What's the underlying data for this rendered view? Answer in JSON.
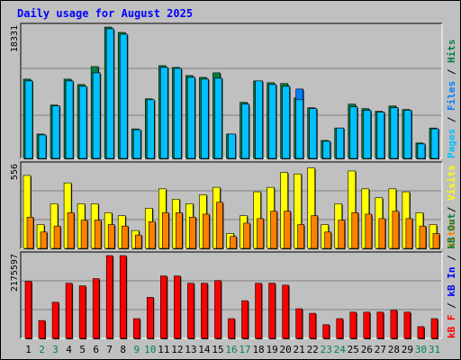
{
  "title": "Daily usage for August 2025",
  "colors": {
    "hits": "#008040",
    "files": "#0080ff",
    "pages": "#00c0ff",
    "visits": "#ffff00",
    "sites": "#ff8000",
    "kbin": "#0000ff",
    "kbout": "#008040",
    "kbf": "#ff0000",
    "weekend_day": "#00805c",
    "weekday": "#000000",
    "panel_bg": "#c0c0c0",
    "gridline": "#808080"
  },
  "chart_data": [
    {
      "type": "bar",
      "panel": "hits-files-pages",
      "title": "Daily usage for August 2025",
      "y_max_label": "18331",
      "ylim": [
        0,
        18331
      ],
      "legend_right": [
        {
          "key": "pages",
          "text": "Pages"
        },
        {
          "key": "sep",
          "text": " / "
        },
        {
          "key": "files",
          "text": "Files"
        },
        {
          "key": "sep",
          "text": " / "
        },
        {
          "key": "hits",
          "text": "Hits"
        }
      ],
      "categories": [
        "1",
        "2",
        "3",
        "4",
        "5",
        "6",
        "7",
        "8",
        "9",
        "10",
        "11",
        "12",
        "13",
        "14",
        "15",
        "16",
        "17",
        "18",
        "19",
        "20",
        "21",
        "22",
        "23",
        "24",
        "25",
        "26",
        "27",
        "28",
        "29",
        "30",
        "31"
      ],
      "series": [
        {
          "name": "Hits",
          "values": [
            11060,
            3400,
            7440,
            11060,
            10310,
            12810,
            18330,
            17580,
            4120,
            8310,
            12940,
            12690,
            11560,
            11310,
            11940,
            3400,
            7820,
            10810,
            10560,
            10440,
            8430,
            7070,
            2510,
            4240,
            7570,
            6950,
            6570,
            7320,
            6820,
            2150,
            4240
          ]
        },
        {
          "name": "Files",
          "values": [
            10810,
            3270,
            7320,
            10810,
            10060,
            11940,
            18080,
            17330,
            3990,
            8190,
            12690,
            12560,
            11310,
            11060,
            11190,
            3400,
            7570,
            10810,
            10310,
            10060,
            9680,
            6950,
            2390,
            4240,
            7190,
            6700,
            6450,
            7070,
            6700,
            2020,
            4120
          ]
        },
        {
          "name": "Pages",
          "values": [
            10810,
            3270,
            7320,
            10810,
            10060,
            11940,
            18080,
            17330,
            3990,
            8190,
            12690,
            12560,
            11310,
            11060,
            11190,
            3400,
            7570,
            10810,
            10310,
            10060,
            8190,
            6950,
            2390,
            4240,
            7190,
            6700,
            6450,
            7070,
            6700,
            2020,
            4120
          ]
        }
      ]
    },
    {
      "type": "bar",
      "panel": "visits-sites",
      "y_max_label": "556",
      "ylim": [
        0,
        556
      ],
      "legend_right": [
        {
          "key": "sites",
          "text": "Sites"
        },
        {
          "key": "sep",
          "text": " / "
        },
        {
          "key": "visits",
          "text": "Visits"
        }
      ],
      "categories": [
        "1",
        "2",
        "3",
        "4",
        "5",
        "6",
        "7",
        "8",
        "9",
        "10",
        "11",
        "12",
        "13",
        "14",
        "15",
        "16",
        "17",
        "18",
        "19",
        "20",
        "21",
        "22",
        "23",
        "24",
        "25",
        "26",
        "27",
        "28",
        "29",
        "30",
        "31"
      ],
      "series": [
        {
          "name": "Visits",
          "values": [
            490,
            160,
            300,
            440,
            300,
            300,
            240,
            220,
            120,
            270,
            400,
            330,
            300,
            360,
            410,
            100,
            220,
            380,
            410,
            510,
            500,
            540,
            160,
            300,
            520,
            400,
            340,
            400,
            380,
            240,
            160
          ]
        },
        {
          "name": "Sites",
          "values": [
            210,
            110,
            150,
            240,
            190,
            190,
            160,
            150,
            90,
            180,
            240,
            240,
            210,
            230,
            310,
            80,
            170,
            200,
            250,
            250,
            160,
            220,
            110,
            190,
            240,
            230,
            200,
            250,
            200,
            150,
            100
          ]
        }
      ]
    },
    {
      "type": "bar",
      "panel": "kbf-kbin-kbout",
      "y_max_label": "2175597",
      "ylim": [
        0,
        2175597
      ],
      "legend_right": [
        {
          "key": "kbf",
          "text": "kB F"
        },
        {
          "key": "sep",
          "text": " / "
        },
        {
          "key": "kbin",
          "text": "kB In"
        },
        {
          "key": "sep",
          "text": " / "
        },
        {
          "key": "kbout",
          "text": "kB Out"
        }
      ],
      "categories": [
        "1",
        "2",
        "3",
        "4",
        "5",
        "6",
        "7",
        "8",
        "9",
        "10",
        "11",
        "12",
        "13",
        "14",
        "15",
        "16",
        "17",
        "18",
        "19",
        "20",
        "21",
        "22",
        "23",
        "24",
        "25",
        "26",
        "27",
        "28",
        "29",
        "30",
        "31"
      ],
      "series": [
        {
          "name": "kB F",
          "values": [
            1500000,
            470000,
            950000,
            1450000,
            1380000,
            1570000,
            2175000,
            2175000,
            520000,
            1080000,
            1640000,
            1640000,
            1450000,
            1450000,
            1520000,
            520000,
            990000,
            1450000,
            1450000,
            1400000,
            780000,
            660000,
            360000,
            520000,
            690000,
            690000,
            690000,
            740000,
            690000,
            310000,
            520000
          ]
        }
      ]
    }
  ]
}
